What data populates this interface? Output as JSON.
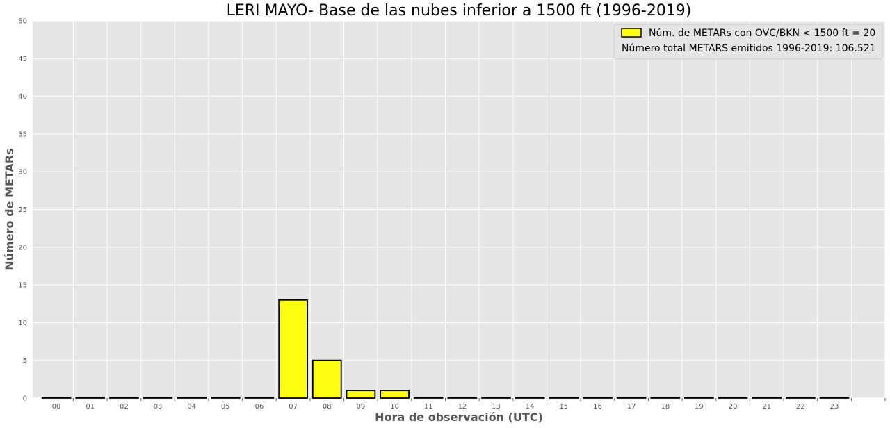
{
  "chart_data": {
    "type": "bar",
    "title": "LERI MAYO- Base de las nubes inferior a 1500 ft (1996-2019)",
    "xlabel": "Hora de observación (UTC)",
    "ylabel": "Número de METARs",
    "categories": [
      "00",
      "01",
      "02",
      "03",
      "04",
      "05",
      "06",
      "07",
      "08",
      "09",
      "10",
      "11",
      "12",
      "13",
      "14",
      "15",
      "16",
      "17",
      "18",
      "19",
      "20",
      "21",
      "22",
      "23"
    ],
    "values": [
      0,
      0,
      0,
      0,
      0,
      0,
      0,
      13,
      5,
      1,
      1,
      0,
      0,
      0,
      0,
      0,
      0,
      0,
      0,
      0,
      0,
      0,
      0,
      0
    ],
    "ylim": [
      0,
      50
    ],
    "yticks": [
      0,
      5,
      10,
      15,
      20,
      25,
      30,
      35,
      40,
      45,
      50
    ],
    "grid": true,
    "legend": {
      "placement": "top-right",
      "entry": "Núm. de METARs con OVC/BKN < 1500 ft = 20",
      "note": "Número total METARS emitidos 1996-2019: 106.521"
    },
    "colors": {
      "bar_fill": "#ffff14",
      "bar_edge": "#000000",
      "plot_background": "#e5e5e5",
      "grid": "#ffffff"
    }
  }
}
